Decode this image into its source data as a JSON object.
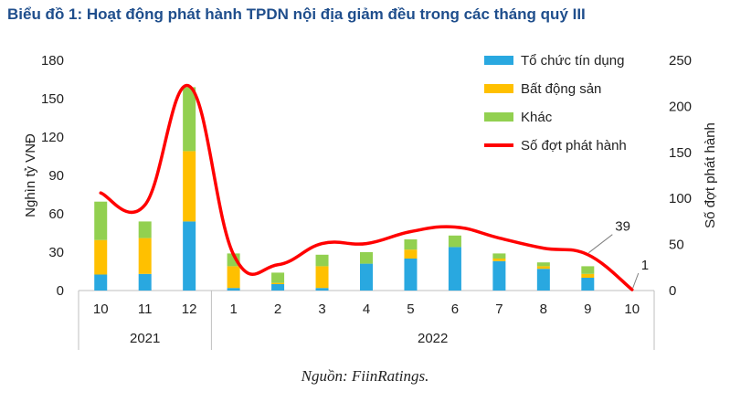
{
  "title": "Biểu đồ 1: Hoạt động phát hành TPDN nội địa giảm đều trong các tháng quý III",
  "source": "Nguồn: FiinRatings.",
  "chart_data": {
    "type": "bar",
    "stacked": true,
    "categories": [
      "10",
      "11",
      "12",
      "1",
      "2",
      "3",
      "4",
      "5",
      "6",
      "7",
      "8",
      "9",
      "10"
    ],
    "groups": [
      {
        "label": "2021",
        "categories": [
          "10",
          "11",
          "12"
        ]
      },
      {
        "label": "2022",
        "categories": [
          "1",
          "2",
          "3",
          "4",
          "5",
          "6",
          "7",
          "8",
          "9",
          "10"
        ]
      }
    ],
    "series": [
      {
        "name": "Tổ chức tín dụng",
        "color": "#29a8e0",
        "axis": "left",
        "values": [
          12.5,
          13,
          54,
          2,
          5,
          2,
          21,
          25,
          34,
          23,
          17,
          10,
          0
        ]
      },
      {
        "name": "Bất động sản",
        "color": "#ffc000",
        "axis": "left",
        "values": [
          27,
          28,
          55,
          17,
          1,
          17,
          0,
          7,
          0,
          2,
          2,
          3,
          0
        ]
      },
      {
        "name": "Khác",
        "color": "#92d050",
        "axis": "left",
        "values": [
          30,
          13,
          50,
          10,
          8,
          9,
          9,
          8,
          9,
          4,
          3,
          6,
          0
        ]
      },
      {
        "name": "Số đợt phát hành",
        "type": "line",
        "color": "#ff0000",
        "axis": "right",
        "values": [
          106,
          93,
          222,
          39,
          28,
          51,
          51,
          64,
          69,
          57,
          46,
          39,
          1
        ]
      }
    ],
    "annotations": [
      {
        "category_index": 11,
        "label": "39"
      },
      {
        "category_index": 12,
        "label": "1"
      }
    ],
    "ylabel": "Nghìn tỷ VNĐ",
    "ylim": [
      0,
      180
    ],
    "yticks": [
      "0",
      "30",
      "60",
      "90",
      "120",
      "150",
      "180"
    ],
    "y2label": "Số đợt phát hành",
    "y2lim": [
      0,
      250
    ],
    "y2ticks": [
      "0",
      "50",
      "100",
      "150",
      "200",
      "250"
    ],
    "grid": false,
    "legend_position": "top-right"
  }
}
